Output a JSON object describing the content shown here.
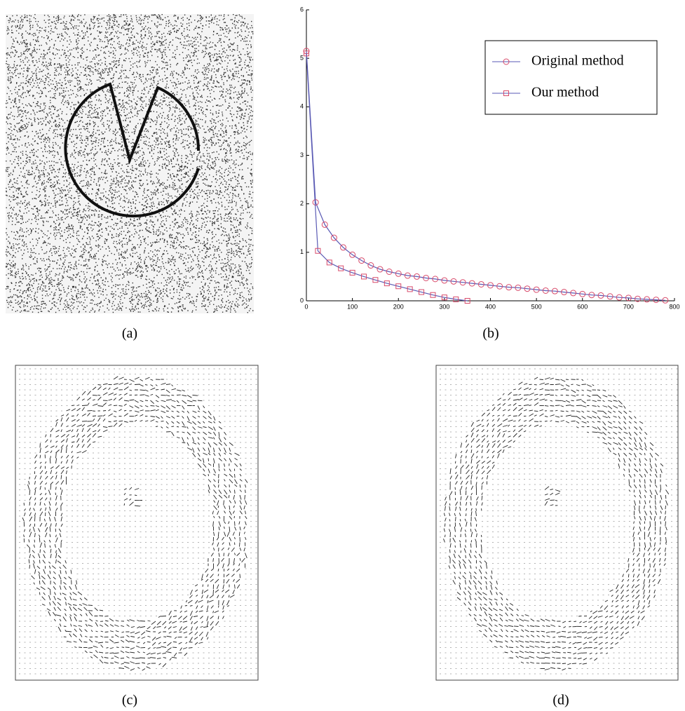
{
  "captions": [
    "(a)",
    "(b)",
    "(c)",
    "(d)"
  ],
  "chart_data": {
    "type": "line",
    "xlim": [
      0,
      800
    ],
    "xticks": [
      0,
      100,
      200,
      300,
      400,
      500,
      600,
      700,
      800
    ],
    "ylim": [
      0,
      6
    ],
    "yticks": [
      0,
      1,
      2,
      3,
      4,
      5,
      6
    ],
    "legend": "upper right",
    "series": [
      {
        "name": "Original method",
        "color": "#5a5ab4",
        "marker_color": "#d84a6a",
        "marker": "circle",
        "x": [
          0,
          20,
          40,
          60,
          80,
          100,
          120,
          140,
          160,
          180,
          200,
          220,
          240,
          260,
          280,
          300,
          320,
          340,
          360,
          380,
          400,
          420,
          440,
          460,
          480,
          500,
          520,
          540,
          560,
          580,
          600,
          620,
          640,
          660,
          680,
          700,
          720,
          740,
          760,
          780
        ],
        "values": [
          5.15,
          2.03,
          1.57,
          1.3,
          1.1,
          0.95,
          0.83,
          0.73,
          0.65,
          0.6,
          0.56,
          0.52,
          0.5,
          0.47,
          0.45,
          0.42,
          0.4,
          0.38,
          0.36,
          0.34,
          0.32,
          0.3,
          0.28,
          0.27,
          0.25,
          0.23,
          0.21,
          0.2,
          0.18,
          0.16,
          0.14,
          0.12,
          0.11,
          0.09,
          0.07,
          0.06,
          0.04,
          0.03,
          0.02,
          0.01
        ]
      },
      {
        "name": "Our method",
        "color": "#5a5ab4",
        "marker_color": "#d84a6a",
        "marker": "square",
        "x": [
          0,
          25,
          50,
          75,
          100,
          125,
          150,
          175,
          200,
          225,
          250,
          275,
          300,
          325,
          350
        ],
        "values": [
          5.1,
          1.03,
          0.79,
          0.67,
          0.58,
          0.5,
          0.43,
          0.36,
          0.3,
          0.24,
          0.18,
          0.12,
          0.07,
          0.03,
          0
        ]
      }
    ]
  }
}
